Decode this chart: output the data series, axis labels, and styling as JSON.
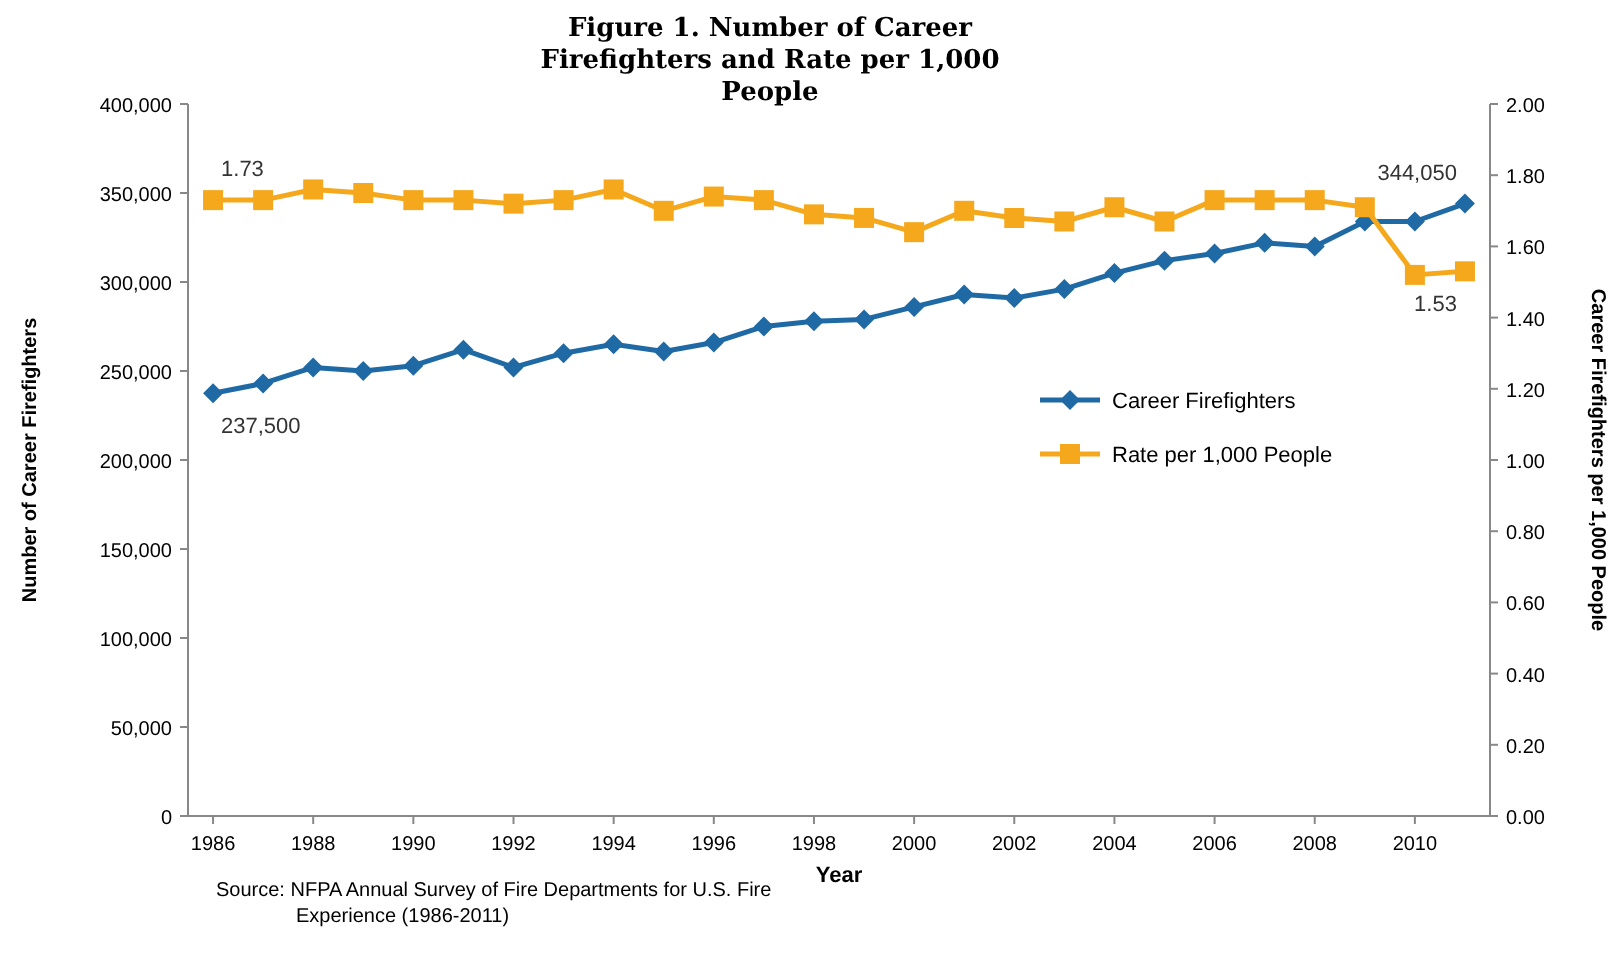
{
  "chart_data": {
    "type": "line",
    "title": "Figure 1. Number of Career Firefighters and Rate per 1,000 People",
    "xlabel": "Year",
    "ylabel": "Number of Career Firefighters",
    "y2label": "Career Firefighters per 1,000 People",
    "x": [
      1986,
      1987,
      1988,
      1989,
      1990,
      1991,
      1992,
      1993,
      1994,
      1995,
      1996,
      1997,
      1998,
      1999,
      2000,
      2001,
      2002,
      2003,
      2004,
      2005,
      2006,
      2007,
      2008,
      2009,
      2010,
      2011
    ],
    "xlim": [
      1985.5,
      2011.5
    ],
    "xticks": [
      1986,
      1988,
      1990,
      1992,
      1994,
      1996,
      1998,
      2000,
      {
        "value": 2002,
        "label": "2002"
      },
      2004,
      2006,
      2008,
      2010
    ],
    "ylim": [
      0,
      400000
    ],
    "yticks": [
      {
        "value": 0,
        "label": "0"
      },
      {
        "value": 50000,
        "label": "50,000"
      },
      {
        "value": 100000,
        "label": "100,000"
      },
      {
        "value": 150000,
        "label": "150,000"
      },
      {
        "value": 200000,
        "label": "200,000"
      },
      {
        "value": 250000,
        "label": "250,000"
      },
      {
        "value": 300000,
        "label": "300,000"
      },
      {
        "value": 350000,
        "label": "350,000"
      },
      {
        "value": 400000,
        "label": "400,000"
      }
    ],
    "y2lim": [
      0,
      2
    ],
    "y2ticks": [
      {
        "value": 0,
        "label": "0.00"
      },
      {
        "value": 0.2,
        "label": "0.20"
      },
      {
        "value": 0.4,
        "label": "0.40"
      },
      {
        "value": 0.6,
        "label": "0.60"
      },
      {
        "value": 0.8,
        "label": "0.80"
      },
      {
        "value": 1,
        "label": "1.00"
      },
      {
        "value": 1.2,
        "label": "1.20"
      },
      {
        "value": 1.4,
        "label": "1.40"
      },
      {
        "value": 1.6,
        "label": "1.60"
      },
      {
        "value": 1.8,
        "label": "1.80"
      },
      {
        "value": 2,
        "label": "2.00"
      }
    ],
    "series": [
      {
        "name": "Career Firefighters",
        "color": "#1f6aa5",
        "marker": "diamond",
        "values": [
          237500,
          243000,
          252000,
          250000,
          253000,
          262000,
          252000,
          260000,
          265000,
          261000,
          266000,
          275000,
          278000,
          279000,
          286000,
          293000,
          291000,
          296000,
          305000,
          312000,
          316000,
          322000,
          320000,
          334000,
          334000,
          344050
        ],
        "value_labels": [
          "237,500",
          null,
          null,
          null,
          null,
          null,
          null,
          null,
          null,
          null,
          null,
          null,
          null,
          null,
          null,
          null,
          null,
          null,
          null,
          null,
          null,
          null,
          null,
          null,
          null,
          "344,050"
        ]
      },
      {
        "name": "Rate per 1,000 People",
        "color": "#f5a81c",
        "marker": "square",
        "axis": "y2",
        "values": [
          1.73,
          1.73,
          1.76,
          1.75,
          1.73,
          1.73,
          1.72,
          1.73,
          1.76,
          1.7,
          1.74,
          1.73,
          1.69,
          1.68,
          1.64,
          1.7,
          1.68,
          1.67,
          1.71,
          1.67,
          1.73,
          1.73,
          1.73,
          1.71,
          1.52,
          1.53
        ],
        "value_labels": [
          "1.73",
          null,
          null,
          null,
          null,
          null,
          null,
          null,
          null,
          null,
          null,
          null,
          null,
          null,
          null,
          null,
          null,
          null,
          null,
          null,
          null,
          null,
          null,
          null,
          null,
          "1.53"
        ]
      }
    ],
    "legend": "right",
    "grid": false,
    "line_style": "solid",
    "annotations": [
      "Source: NFPA Annual Survey of Fire Departments for U.S. Fire Experience (1986-2011)"
    ]
  }
}
